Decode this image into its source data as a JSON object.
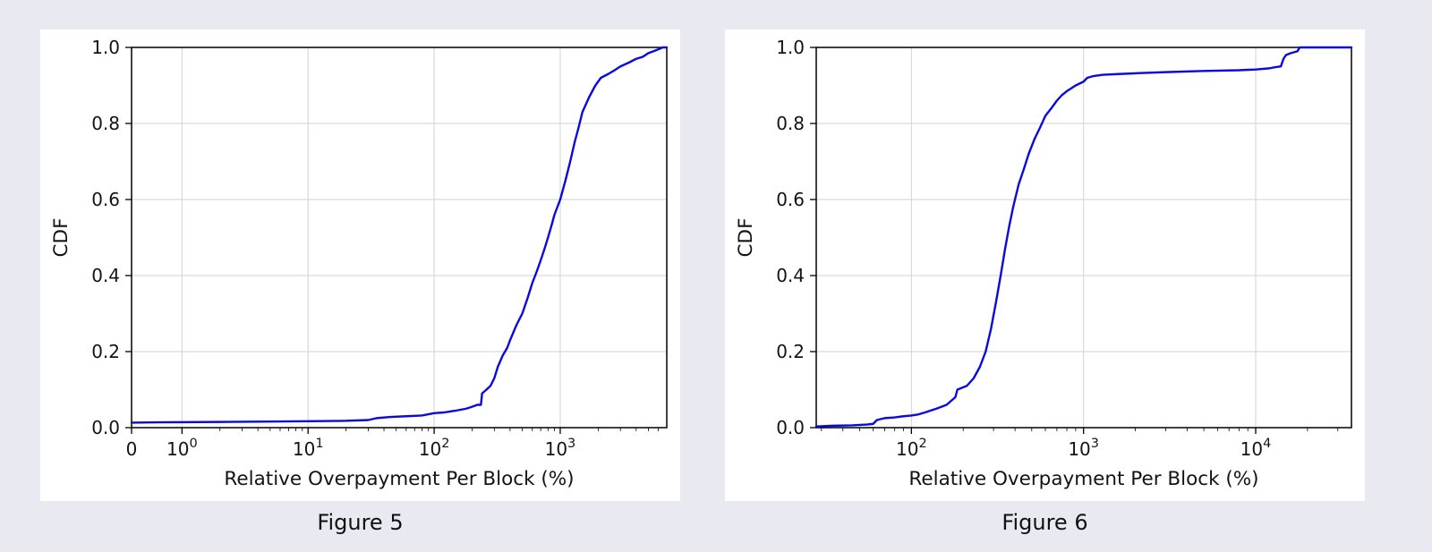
{
  "style": {
    "page_bg": "#e9e9f1",
    "card_bg": "#ffffff",
    "line_color": "#0a0add",
    "grid_color": "#d2d2d2",
    "axis_color": "#000000",
    "text_color": "#141414"
  },
  "figures": [
    {
      "caption": "Figure 5"
    },
    {
      "caption": "Figure 6"
    }
  ],
  "chart_data": [
    {
      "type": "line",
      "title": "",
      "xlabel": "Relative Overpayment Per Block (%)",
      "ylabel": "CDF",
      "xscale": "symlog",
      "lin_decades": 0.4,
      "xmax": 7000,
      "ylim": [
        0,
        1
      ],
      "yticks": [
        0,
        0.2,
        0.4,
        0.6,
        0.8,
        1.0
      ],
      "xticks": [
        {
          "v": 0,
          "label": "0"
        },
        {
          "v": 1,
          "base": "10",
          "exp": "0"
        },
        {
          "v": 10,
          "base": "10",
          "exp": "1"
        },
        {
          "v": 100,
          "base": "10",
          "exp": "2"
        },
        {
          "v": 1000,
          "base": "10",
          "exp": "3"
        }
      ],
      "points": [
        [
          0,
          0.013
        ],
        [
          0.5,
          0.014
        ],
        [
          2,
          0.015
        ],
        [
          5,
          0.016
        ],
        [
          10,
          0.017
        ],
        [
          20,
          0.018
        ],
        [
          30,
          0.02
        ],
        [
          35,
          0.025
        ],
        [
          45,
          0.028
        ],
        [
          60,
          0.03
        ],
        [
          80,
          0.032
        ],
        [
          100,
          0.038
        ],
        [
          120,
          0.04
        ],
        [
          150,
          0.045
        ],
        [
          180,
          0.05
        ],
        [
          200,
          0.055
        ],
        [
          220,
          0.06
        ],
        [
          235,
          0.06
        ],
        [
          240,
          0.09
        ],
        [
          260,
          0.1
        ],
        [
          280,
          0.11
        ],
        [
          300,
          0.13
        ],
        [
          320,
          0.16
        ],
        [
          350,
          0.19
        ],
        [
          380,
          0.21
        ],
        [
          400,
          0.23
        ],
        [
          450,
          0.27
        ],
        [
          500,
          0.3
        ],
        [
          550,
          0.34
        ],
        [
          600,
          0.38
        ],
        [
          650,
          0.41
        ],
        [
          700,
          0.44
        ],
        [
          750,
          0.47
        ],
        [
          800,
          0.5
        ],
        [
          850,
          0.53
        ],
        [
          900,
          0.56
        ],
        [
          1000,
          0.6
        ],
        [
          1100,
          0.65
        ],
        [
          1200,
          0.7
        ],
        [
          1300,
          0.75
        ],
        [
          1400,
          0.79
        ],
        [
          1500,
          0.83
        ],
        [
          1700,
          0.87
        ],
        [
          1900,
          0.9
        ],
        [
          2100,
          0.92
        ],
        [
          2400,
          0.93
        ],
        [
          2700,
          0.94
        ],
        [
          3000,
          0.95
        ],
        [
          3500,
          0.96
        ],
        [
          4000,
          0.97
        ],
        [
          4500,
          0.975
        ],
        [
          5000,
          0.985
        ],
        [
          5500,
          0.99
        ],
        [
          6000,
          0.995
        ],
        [
          6500,
          1.0
        ],
        [
          7000,
          1.0
        ]
      ]
    },
    {
      "type": "line",
      "title": "",
      "xlabel": "Relative Overpayment Per Block (%)",
      "ylabel": "CDF",
      "xscale": "log",
      "xlim": [
        28,
        36000
      ],
      "ylim": [
        0,
        1
      ],
      "yticks": [
        0,
        0.2,
        0.4,
        0.6,
        0.8,
        1.0
      ],
      "xticks": [
        {
          "v": 100,
          "base": "10",
          "exp": "2"
        },
        {
          "v": 1000,
          "base": "10",
          "exp": "3"
        },
        {
          "v": 10000,
          "base": "10",
          "exp": "4"
        }
      ],
      "points": [
        [
          28,
          0.003
        ],
        [
          35,
          0.005
        ],
        [
          45,
          0.006
        ],
        [
          55,
          0.008
        ],
        [
          60,
          0.01
        ],
        [
          63,
          0.02
        ],
        [
          70,
          0.025
        ],
        [
          80,
          0.027
        ],
        [
          90,
          0.03
        ],
        [
          100,
          0.032
        ],
        [
          110,
          0.035
        ],
        [
          120,
          0.04
        ],
        [
          140,
          0.05
        ],
        [
          160,
          0.06
        ],
        [
          180,
          0.08
        ],
        [
          185,
          0.1
        ],
        [
          210,
          0.11
        ],
        [
          230,
          0.13
        ],
        [
          250,
          0.16
        ],
        [
          270,
          0.2
        ],
        [
          290,
          0.26
        ],
        [
          310,
          0.33
        ],
        [
          330,
          0.4
        ],
        [
          350,
          0.47
        ],
        [
          370,
          0.53
        ],
        [
          390,
          0.58
        ],
        [
          420,
          0.64
        ],
        [
          450,
          0.68
        ],
        [
          480,
          0.72
        ],
        [
          520,
          0.76
        ],
        [
          560,
          0.79
        ],
        [
          600,
          0.82
        ],
        [
          650,
          0.84
        ],
        [
          700,
          0.86
        ],
        [
          750,
          0.875
        ],
        [
          800,
          0.885
        ],
        [
          900,
          0.9
        ],
        [
          1000,
          0.91
        ],
        [
          1050,
          0.92
        ],
        [
          1150,
          0.925
        ],
        [
          1300,
          0.928
        ],
        [
          1600,
          0.93
        ],
        [
          2000,
          0.932
        ],
        [
          3000,
          0.935
        ],
        [
          5000,
          0.938
        ],
        [
          8000,
          0.94
        ],
        [
          10000,
          0.942
        ],
        [
          12000,
          0.945
        ],
        [
          13000,
          0.948
        ],
        [
          14000,
          0.95
        ],
        [
          14500,
          0.97
        ],
        [
          15000,
          0.98
        ],
        [
          16000,
          0.985
        ],
        [
          17500,
          0.99
        ],
        [
          18000,
          1.0
        ],
        [
          25000,
          1.0
        ],
        [
          36000,
          1.0
        ]
      ]
    }
  ]
}
